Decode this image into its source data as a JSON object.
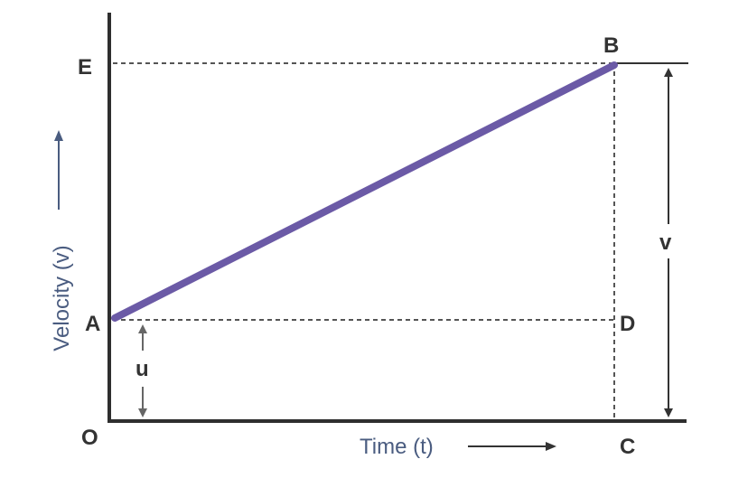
{
  "labels": {
    "E": "E",
    "B": "B",
    "A": "A",
    "D": "D",
    "O": "O",
    "C": "C",
    "u": "u",
    "v": "v"
  },
  "axes": {
    "y_title": "Velocity (v)",
    "x_title": "Time (t)"
  },
  "colors": {
    "graph_line": "#6b5aa6",
    "axis": "#2e2e2e",
    "axis_title": "#4a5c80"
  }
}
